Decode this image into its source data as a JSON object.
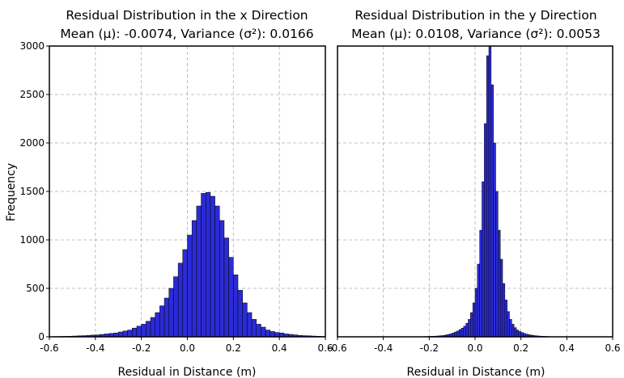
{
  "figure": {
    "ylabel": "Frequency"
  },
  "chart_data": [
    {
      "type": "bar",
      "title": "Residual Distribution in the x Direction",
      "subtitle": "Mean (μ): -0.0074, Variance (σ²): 0.0166",
      "xlabel": "Residual in Distance (m)",
      "ylabel": "Frequency",
      "xlim": [
        -0.6,
        0.6
      ],
      "ylim": [
        0,
        3000
      ],
      "xticks": [
        "-0.6",
        "-0.4",
        "-0.2",
        "0.0",
        "0.2",
        "0.4",
        "0.6"
      ],
      "yticks": [
        "0",
        "500",
        "1000",
        "1500",
        "2000",
        "2500",
        "3000"
      ],
      "grid": true,
      "bar_color": "#2b2bd6",
      "bin_width": 0.02,
      "bin_start": -0.6,
      "values": [
        2,
        3,
        4,
        5,
        6,
        8,
        10,
        12,
        14,
        18,
        20,
        25,
        30,
        35,
        40,
        50,
        60,
        70,
        90,
        110,
        130,
        160,
        200,
        250,
        320,
        400,
        500,
        620,
        760,
        900,
        1050,
        1200,
        1350,
        1480,
        1490,
        1450,
        1350,
        1200,
        1020,
        820,
        640,
        480,
        350,
        250,
        180,
        130,
        100,
        70,
        55,
        45,
        40,
        30,
        25,
        20,
        15,
        12,
        10,
        8,
        6,
        4
      ]
    },
    {
      "type": "bar",
      "title": "Residual Distribution in the y Direction",
      "subtitle": "Mean (μ): 0.0108, Variance (σ²): 0.0053",
      "xlabel": "Residual in Distance (m)",
      "xlim": [
        -0.6,
        0.6
      ],
      "ylim": [
        0,
        3000
      ],
      "xticks": [
        "-0.6",
        "-0.4",
        "-0.2",
        "0.0",
        "0.2",
        "0.4",
        "0.6"
      ],
      "grid": true,
      "bar_color": "#2b2bd6",
      "bin_width": 0.01,
      "bin_start": -0.6,
      "values": [
        0,
        0,
        0,
        0,
        0,
        0,
        0,
        0,
        0,
        0,
        0,
        0,
        0,
        0,
        0,
        0,
        0,
        0,
        0,
        0,
        0,
        0,
        0,
        0,
        0,
        0,
        0,
        0,
        0,
        0,
        0,
        1,
        1,
        1,
        2,
        2,
        2,
        3,
        3,
        4,
        5,
        6,
        7,
        8,
        10,
        12,
        15,
        20,
        25,
        30,
        40,
        50,
        60,
        75,
        90,
        110,
        140,
        180,
        250,
        350,
        500,
        750,
        1100,
        1600,
        2200,
        2900,
        3000,
        2600,
        2000,
        1500,
        1100,
        800,
        550,
        380,
        260,
        180,
        130,
        95,
        70,
        55,
        45,
        35,
        28,
        22,
        18,
        14,
        11,
        9,
        7,
        6,
        5,
        4,
        3,
        2,
        2,
        1,
        1,
        1,
        1,
        0,
        0,
        0,
        0,
        0,
        0,
        0,
        0,
        0,
        0,
        0,
        0,
        0,
        0,
        0,
        0,
        0,
        0,
        0,
        0,
        0
      ]
    }
  ]
}
